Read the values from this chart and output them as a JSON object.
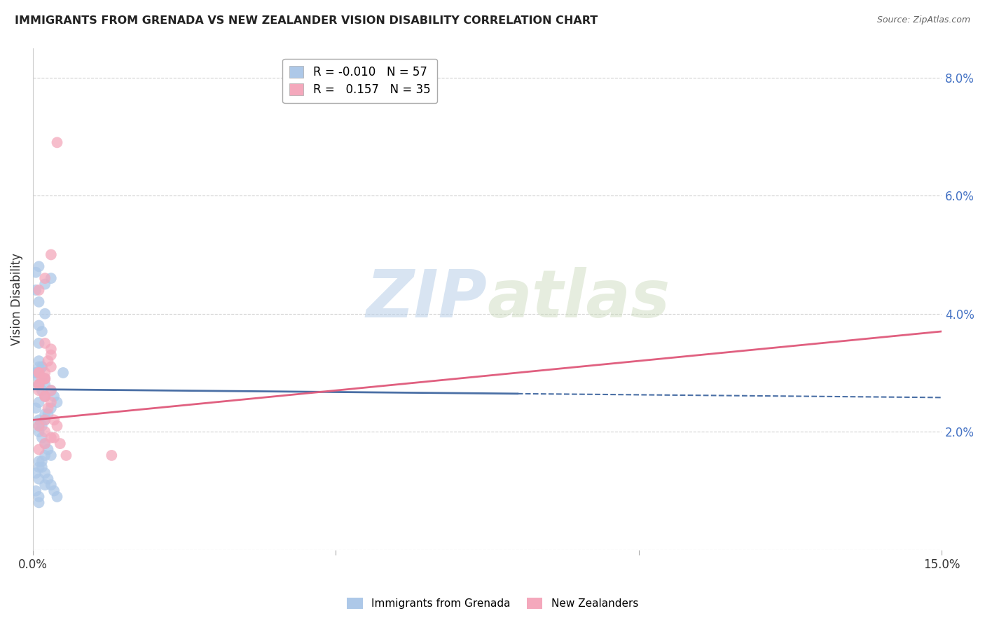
{
  "title": "IMMIGRANTS FROM GRENADA VS NEW ZEALANDER VISION DISABILITY CORRELATION CHART",
  "source": "Source: ZipAtlas.com",
  "ylabel": "Vision Disability",
  "xlim": [
    0.0,
    0.15
  ],
  "ylim": [
    0.0,
    0.085
  ],
  "series1_name": "Immigrants from Grenada",
  "series1_color": "#adc8e8",
  "series1_line_color": "#4a6fa5",
  "series1_R": "-0.010",
  "series1_N": "57",
  "series2_name": "New Zealanders",
  "series2_color": "#f4a8bc",
  "series2_line_color": "#e06080",
  "series2_R": "0.157",
  "series2_N": "35",
  "watermark_zip": "ZIP",
  "watermark_atlas": "atlas",
  "trend1_x0": 0.0,
  "trend1_y0": 0.0272,
  "trend1_x1": 0.15,
  "trend1_y1": 0.0258,
  "trend1_solid_x1": 0.08,
  "trend2_x0": 0.0,
  "trend2_y0": 0.022,
  "trend2_x1": 0.15,
  "trend2_y1": 0.037,
  "series1_x": [
    0.001,
    0.0015,
    0.002,
    0.001,
    0.0005,
    0.001,
    0.0015,
    0.002,
    0.001,
    0.0005,
    0.001,
    0.002,
    0.0015,
    0.001,
    0.0005,
    0.001,
    0.002,
    0.003,
    0.001,
    0.0005,
    0.001,
    0.0015,
    0.002,
    0.001,
    0.0005,
    0.001,
    0.002,
    0.0015,
    0.001,
    0.0005,
    0.001,
    0.002,
    0.001,
    0.0005,
    0.001,
    0.0015,
    0.002,
    0.003,
    0.0035,
    0.004,
    0.003,
    0.0025,
    0.002,
    0.001,
    0.0015,
    0.002,
    0.0025,
    0.003,
    0.001,
    0.0015,
    0.002,
    0.0025,
    0.003,
    0.0035,
    0.004,
    0.005,
    0.001
  ],
  "series1_y": [
    0.03,
    0.031,
    0.029,
    0.028,
    0.03,
    0.032,
    0.027,
    0.026,
    0.025,
    0.024,
    0.022,
    0.023,
    0.021,
    0.02,
    0.03,
    0.029,
    0.045,
    0.046,
    0.048,
    0.047,
    0.035,
    0.037,
    0.04,
    0.042,
    0.044,
    0.038,
    0.016,
    0.015,
    0.014,
    0.013,
    0.012,
    0.011,
    0.009,
    0.01,
    0.008,
    0.031,
    0.028,
    0.027,
    0.026,
    0.025,
    0.024,
    0.023,
    0.022,
    0.021,
    0.019,
    0.018,
    0.017,
    0.016,
    0.015,
    0.014,
    0.013,
    0.012,
    0.011,
    0.01,
    0.009,
    0.03,
    0.031
  ],
  "series2_x": [
    0.001,
    0.0015,
    0.002,
    0.001,
    0.0025,
    0.002,
    0.003,
    0.001,
    0.002,
    0.003,
    0.0025,
    0.002,
    0.001,
    0.003,
    0.0035,
    0.002,
    0.001,
    0.003,
    0.004,
    0.002,
    0.001,
    0.003,
    0.0035,
    0.004,
    0.002,
    0.001,
    0.003,
    0.0045,
    0.002,
    0.001,
    0.0055,
    0.003,
    0.002,
    0.013,
    0.002
  ],
  "series2_y": [
    0.03,
    0.029,
    0.046,
    0.044,
    0.032,
    0.029,
    0.05,
    0.027,
    0.026,
    0.025,
    0.024,
    0.022,
    0.021,
    0.031,
    0.019,
    0.018,
    0.017,
    0.033,
    0.069,
    0.03,
    0.028,
    0.034,
    0.022,
    0.021,
    0.02,
    0.03,
    0.019,
    0.018,
    0.029,
    0.028,
    0.016,
    0.027,
    0.026,
    0.016,
    0.035
  ]
}
